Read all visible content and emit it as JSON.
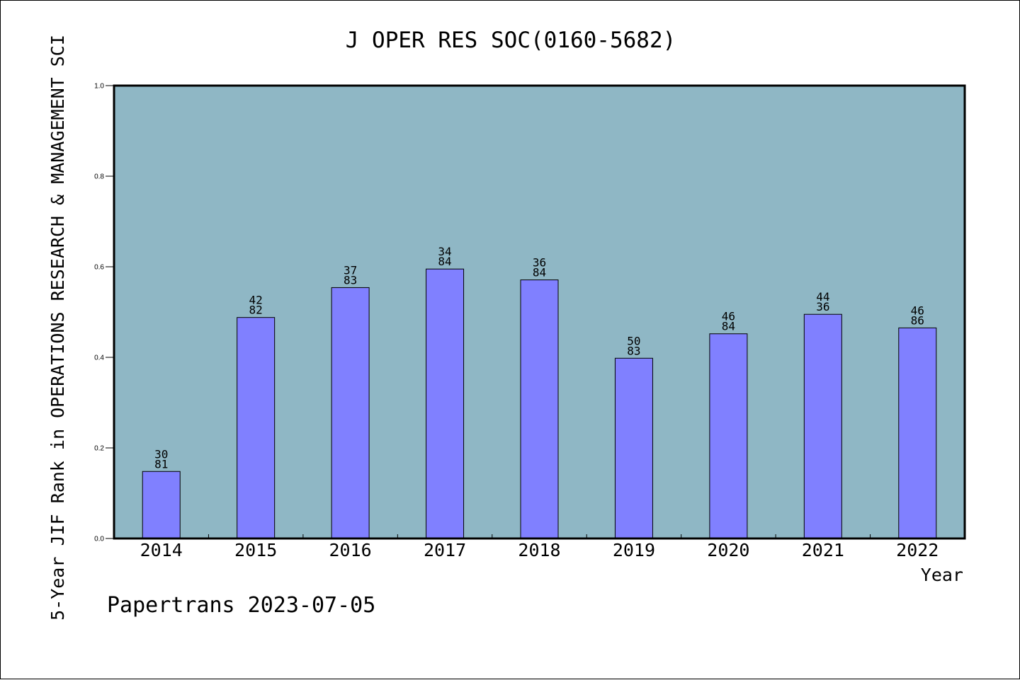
{
  "chart_data": {
    "type": "bar",
    "title": "J OPER RES SOC(0160-5682)",
    "xlabel": "Year",
    "ylabel": "5-Year JIF Rank in OPERATIONS RESEARCH & MANAGEMENT SCI",
    "categories": [
      "2014",
      "2015",
      "2016",
      "2017",
      "2018",
      "2019",
      "2020",
      "2021",
      "2022"
    ],
    "values": [
      0.148,
      0.488,
      0.554,
      0.595,
      0.571,
      0.398,
      0.452,
      0.495,
      0.465
    ],
    "labels_top": [
      "30",
      "42",
      "37",
      "34",
      "36",
      "50",
      "46",
      "44",
      "46"
    ],
    "labels_bottom": [
      "81",
      "82",
      "83",
      "84",
      "84",
      "83",
      "84",
      "36",
      "86"
    ],
    "yticks": [
      "0.0",
      "0.2",
      "0.4",
      "0.6",
      "0.8",
      "1.0"
    ],
    "ylim": [
      0,
      1.0
    ],
    "grid": false,
    "colors": {
      "plot_bg": "#8fb7c5",
      "bar": "#8080ff",
      "bar_edge": "#000000"
    }
  },
  "footer": "Papertrans 2023-07-05"
}
